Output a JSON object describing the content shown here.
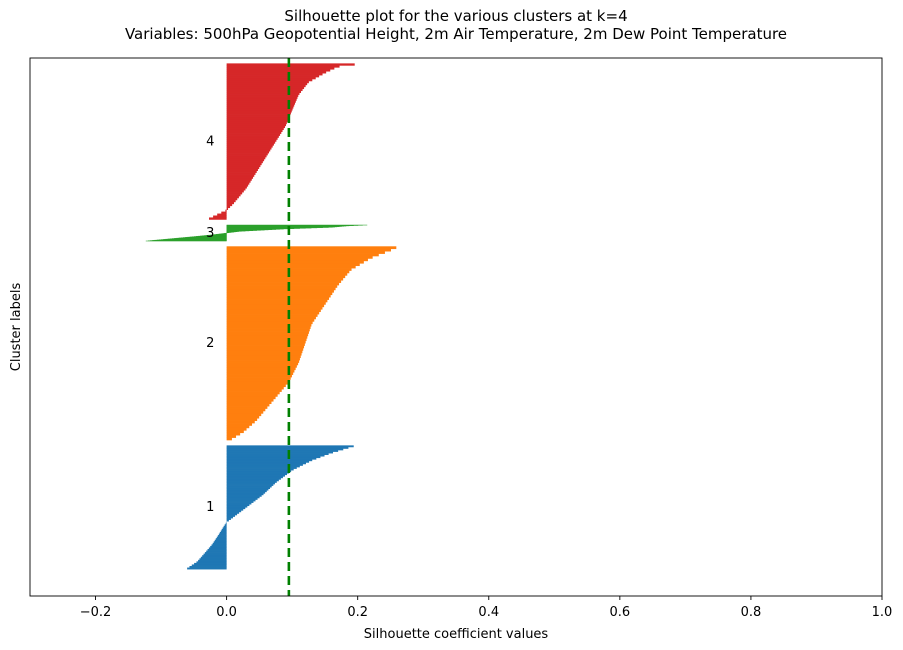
{
  "chart_data": {
    "type": "bar",
    "orientation": "horizontal",
    "title": "Silhouette plot for the various clusters at k=4",
    "subtitle": "Variables: 500hPa Geopotential Height, 2m Air Temperature, 2m Dew Point Temperature",
    "xlabel": "Silhouette coefficient values",
    "ylabel": "Cluster labels",
    "xlim": [
      -0.3,
      1.0
    ],
    "xticks": [
      -0.2,
      0.0,
      0.2,
      0.4,
      0.6,
      0.8,
      1.0
    ],
    "xtick_labels": [
      "−0.2",
      "0.0",
      "0.2",
      "0.4",
      "0.6",
      "0.8",
      "1.0"
    ],
    "ylim": [
      0,
      1000
    ],
    "grid": false,
    "average_silhouette": 0.095,
    "average_line_color": "#008000",
    "clusters": [
      {
        "label": "1",
        "color": "#1f77b4",
        "y_range": [
          50,
          280
        ],
        "profile": [
          [
            0,
            0.198
          ],
          [
            0.02,
            0.185
          ],
          [
            0.06,
            0.16
          ],
          [
            0.12,
            0.13
          ],
          [
            0.2,
            0.1
          ],
          [
            0.3,
            0.075
          ],
          [
            0.4,
            0.055
          ],
          [
            0.5,
            0.03
          ],
          [
            0.58,
            0.01
          ],
          [
            0.62,
            0.0
          ],
          [
            0.66,
            -0.005
          ],
          [
            0.72,
            -0.012
          ],
          [
            0.8,
            -0.022
          ],
          [
            0.88,
            -0.035
          ],
          [
            0.94,
            -0.045
          ],
          [
            1,
            -0.062
          ]
        ]
      },
      {
        "label": "2",
        "color": "#ff7f0e",
        "y_range": [
          290,
          650
        ],
        "profile": [
          [
            0,
            0.263
          ],
          [
            0.02,
            0.25
          ],
          [
            0.06,
            0.22
          ],
          [
            0.12,
            0.19
          ],
          [
            0.2,
            0.17
          ],
          [
            0.3,
            0.15
          ],
          [
            0.4,
            0.13
          ],
          [
            0.5,
            0.12
          ],
          [
            0.6,
            0.11
          ],
          [
            0.7,
            0.095
          ],
          [
            0.8,
            0.07
          ],
          [
            0.9,
            0.045
          ],
          [
            0.96,
            0.025
          ],
          [
            1,
            0.005
          ]
        ]
      },
      {
        "label": "3",
        "color": "#2ca02c",
        "y_range": [
          660,
          690
        ],
        "profile": [
          [
            0,
            0.218
          ],
          [
            0.06,
            0.185
          ],
          [
            0.15,
            0.16
          ],
          [
            0.25,
            0.09
          ],
          [
            0.4,
            0.02
          ],
          [
            0.5,
            0.0
          ],
          [
            0.6,
            -0.02
          ],
          [
            0.72,
            -0.05
          ],
          [
            0.85,
            -0.085
          ],
          [
            1,
            -0.125
          ]
        ]
      },
      {
        "label": "4",
        "color": "#d62728",
        "y_range": [
          700,
          990
        ],
        "profile": [
          [
            0,
            0.207
          ],
          [
            0.02,
            0.17
          ],
          [
            0.06,
            0.15
          ],
          [
            0.12,
            0.125
          ],
          [
            0.2,
            0.11
          ],
          [
            0.3,
            0.1
          ],
          [
            0.4,
            0.09
          ],
          [
            0.5,
            0.075
          ],
          [
            0.6,
            0.06
          ],
          [
            0.7,
            0.045
          ],
          [
            0.8,
            0.03
          ],
          [
            0.9,
            0.01
          ],
          [
            0.94,
            0.0
          ],
          [
            0.97,
            -0.015
          ],
          [
            1,
            -0.03
          ]
        ]
      }
    ]
  }
}
